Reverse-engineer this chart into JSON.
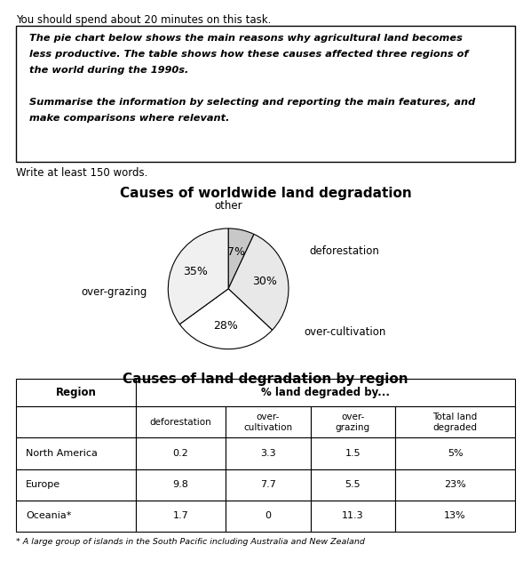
{
  "top_text": "You should spend about 20 minutes on this task.",
  "box_line1": "The pie chart below shows the main reasons why agricultural land becomes",
  "box_line2": "less productive. The table shows how these causes affected three regions of",
  "box_line3": "the world during the 1990s.",
  "box_line4": "Summarise the information by selecting and reporting the main features, and",
  "box_line5": "make comparisons where relevant.",
  "write_text": "Write at least 150 words.",
  "pie_title": "Causes of worldwide land degradation",
  "pie_values": [
    7,
    30,
    28,
    35
  ],
  "pie_colors": [
    "#c8c8c8",
    "#e8e8e8",
    "#ffffff",
    "#f0f0f0"
  ],
  "pie_percentages": [
    "7%",
    "30%",
    "28%",
    "35%"
  ],
  "pie_ext_labels": [
    "other",
    "deforestation",
    "over-cultivation",
    "over-grazing"
  ],
  "table_title": "Causes of land degradation by region",
  "table_rows": [
    [
      "North America",
      "0.2",
      "3.3",
      "1.5",
      "5%"
    ],
    [
      "Europe",
      "9.8",
      "7.7",
      "5.5",
      "23%"
    ],
    [
      "Oceania*",
      "1.7",
      "0",
      "11.3",
      "13%"
    ]
  ],
  "footnote": "* A large group of islands in the South Pacific including Australia and New Zealand",
  "bg_color": "#ffffff"
}
